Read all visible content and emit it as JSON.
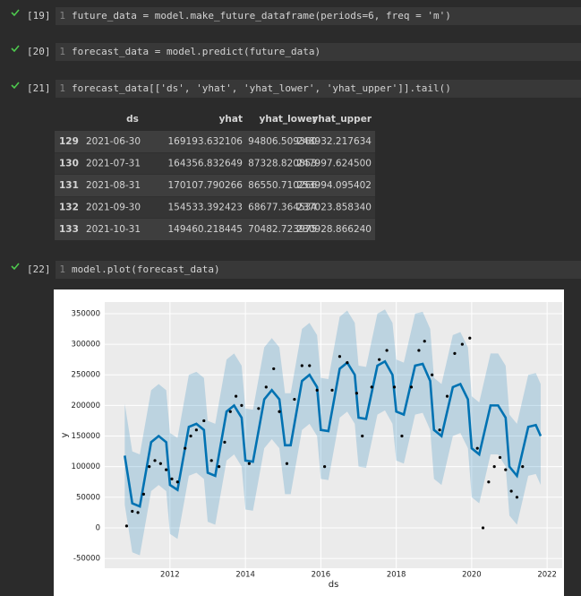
{
  "cells": [
    {
      "count": "[19]",
      "line": "1",
      "code": "future_data = model.make_future_dataframe(periods=6, freq = 'm')"
    },
    {
      "count": "[20]",
      "line": "1",
      "code": "forecast_data = model.predict(future_data)"
    },
    {
      "count": "[21]",
      "line": "1",
      "code": "forecast_data[['ds', 'yhat', 'yhat_lower', 'yhat_upper']].tail()"
    },
    {
      "count": "[22]",
      "line": "1",
      "code": "model.plot(forecast_data)"
    }
  ],
  "table": {
    "columns": [
      "ds",
      "yhat",
      "yhat_lower",
      "yhat_upper"
    ],
    "rows": [
      [
        "129",
        "2021-06-30",
        "169193.632106",
        "94806.509360",
        "248932.217634"
      ],
      [
        "130",
        "2021-07-31",
        "164356.832649",
        "87328.820853",
        "247997.624500"
      ],
      [
        "131",
        "2021-08-31",
        "170107.790266",
        "86550.710266",
        "253994.095402"
      ],
      [
        "132",
        "2021-09-30",
        "154533.392423",
        "68677.364534",
        "237023.858340"
      ],
      [
        "133",
        "2021-10-31",
        "149460.218445",
        "70482.723975",
        "230928.866240"
      ]
    ]
  },
  "chart_data": {
    "type": "line",
    "x_label": "ds",
    "y_label": "y",
    "xlim": [
      2010.27,
      2022.4
    ],
    "xticks": [
      2012,
      2014,
      2016,
      2018,
      2020,
      2022
    ],
    "ylim": [
      -66000,
      369000
    ],
    "yticks": [
      -50000,
      0,
      50000,
      100000,
      150000,
      200000,
      250000,
      300000,
      350000
    ],
    "grid": true,
    "x": [
      2010.8,
      2011.0,
      2011.2,
      2011.5,
      2011.7,
      2011.9,
      2012.0,
      2012.2,
      2012.5,
      2012.7,
      2012.9,
      2013.0,
      2013.2,
      2013.5,
      2013.7,
      2013.9,
      2014.0,
      2014.2,
      2014.5,
      2014.7,
      2014.9,
      2015.05,
      2015.2,
      2015.5,
      2015.7,
      2015.9,
      2016.0,
      2016.2,
      2016.5,
      2016.7,
      2016.9,
      2017.0,
      2017.2,
      2017.5,
      2017.7,
      2017.9,
      2018.0,
      2018.2,
      2018.5,
      2018.7,
      2018.9,
      2019.0,
      2019.2,
      2019.5,
      2019.7,
      2019.9,
      2020.0,
      2020.2,
      2020.5,
      2020.7,
      2020.9,
      2021.0,
      2021.2,
      2021.5,
      2021.7,
      2021.83
    ],
    "series": [
      {
        "color": "#0072b2",
        "values": [
          118000,
          40000,
          35000,
          140000,
          150000,
          140000,
          70000,
          62000,
          165000,
          170000,
          160000,
          90000,
          85000,
          190000,
          200000,
          180000,
          110000,
          108000,
          210000,
          225000,
          210000,
          135000,
          135000,
          240000,
          250000,
          230000,
          160000,
          158000,
          260000,
          270000,
          250000,
          180000,
          178000,
          265000,
          272000,
          250000,
          190000,
          185000,
          265000,
          268000,
          240000,
          160000,
          150000,
          230000,
          235000,
          210000,
          130000,
          120000,
          200000,
          200000,
          180000,
          100000,
          85000,
          165000,
          168000,
          150000
        ]
      }
    ],
    "band": {
      "color": "#0072b2",
      "upper": [
        203000,
        125000,
        120000,
        225000,
        235000,
        225000,
        155000,
        147000,
        250000,
        255000,
        245000,
        175000,
        170000,
        275000,
        285000,
        265000,
        195000,
        193000,
        295000,
        310000,
        295000,
        220000,
        220000,
        325000,
        335000,
        315000,
        245000,
        243000,
        345000,
        355000,
        335000,
        265000,
        263000,
        350000,
        357000,
        335000,
        275000,
        270000,
        350000,
        353000,
        325000,
        245000,
        235000,
        315000,
        320000,
        295000,
        215000,
        205000,
        285000,
        285000,
        265000,
        185000,
        170000,
        250000,
        253000,
        235000
      ],
      "lower": [
        38000,
        -40000,
        -45000,
        60000,
        70000,
        60000,
        -10000,
        -18000,
        85000,
        90000,
        80000,
        10000,
        5000,
        110000,
        120000,
        100000,
        30000,
        28000,
        130000,
        145000,
        130000,
        55000,
        55000,
        160000,
        170000,
        150000,
        80000,
        78000,
        180000,
        190000,
        170000,
        100000,
        98000,
        185000,
        192000,
        170000,
        110000,
        105000,
        185000,
        188000,
        160000,
        80000,
        70000,
        150000,
        155000,
        130000,
        50000,
        40000,
        120000,
        120000,
        100000,
        20000,
        5000,
        85000,
        88000,
        70000
      ]
    },
    "points": {
      "color": "#000000",
      "x": [
        2010.85,
        2011.0,
        2011.15,
        2011.3,
        2011.45,
        2011.6,
        2011.75,
        2011.9,
        2012.05,
        2012.2,
        2012.4,
        2012.55,
        2012.7,
        2012.9,
        2013.1,
        2013.3,
        2013.45,
        2013.6,
        2013.75,
        2013.9,
        2014.1,
        2014.35,
        2014.55,
        2014.75,
        2014.9,
        2015.1,
        2015.3,
        2015.5,
        2015.7,
        2015.9,
        2016.1,
        2016.3,
        2016.5,
        2016.7,
        2016.95,
        2017.1,
        2017.35,
        2017.55,
        2017.75,
        2017.95,
        2018.15,
        2018.4,
        2018.6,
        2018.75,
        2018.95,
        2019.15,
        2019.35,
        2019.55,
        2019.75,
        2019.95,
        2020.15,
        2020.3,
        2020.45,
        2020.6,
        2020.75,
        2020.9,
        2021.05,
        2021.2,
        2021.35
      ],
      "y": [
        3000,
        27000,
        25000,
        55000,
        100000,
        110000,
        105000,
        95000,
        80000,
        75000,
        130000,
        150000,
        160000,
        175000,
        110000,
        100000,
        140000,
        190000,
        215000,
        200000,
        105000,
        195000,
        230000,
        260000,
        190000,
        105000,
        210000,
        265000,
        265000,
        225000,
        100000,
        225000,
        280000,
        270000,
        220000,
        150000,
        230000,
        275000,
        290000,
        230000,
        150000,
        230000,
        290000,
        305000,
        250000,
        160000,
        215000,
        285000,
        300000,
        310000,
        130000,
        0,
        75000,
        100000,
        115000,
        95000,
        60000,
        50000,
        100000
      ]
    }
  }
}
